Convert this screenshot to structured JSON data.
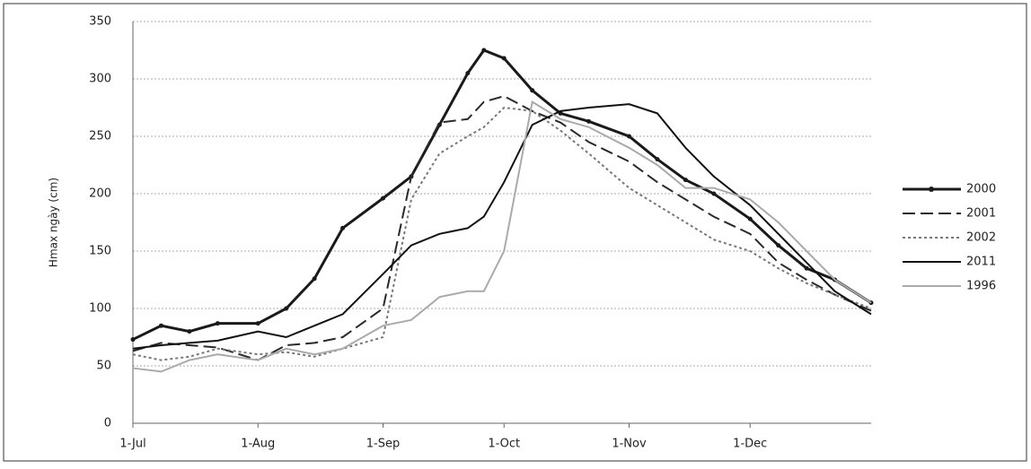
{
  "chart_data": {
    "type": "line",
    "y_label": "Hmax ngày (cm)",
    "x": [
      "1-Jul",
      "8-Jul",
      "15-Jul",
      "22-Jul",
      "1-Aug",
      "8-Aug",
      "15-Aug",
      "22-Aug",
      "1-Sep",
      "8-Sep",
      "15-Sep",
      "22-Sep",
      "26-Sep",
      "1-Oct",
      "8-Oct",
      "15-Oct",
      "22-Oct",
      "1-Nov",
      "8-Nov",
      "15-Nov",
      "22-Nov",
      "1-Dec",
      "8-Dec",
      "15-Dec",
      "22-Dec",
      "31-Dec"
    ],
    "series": [
      {
        "name": "2000",
        "color": "#1a1a1a",
        "style": "solid",
        "markers": true,
        "values": [
          73,
          85,
          80,
          87,
          87,
          100,
          126,
          170,
          196,
          215,
          260,
          305,
          325,
          318,
          290,
          270,
          263,
          250,
          230,
          212,
          200,
          178,
          155,
          135,
          125,
          105
        ]
      },
      {
        "name": "2001",
        "color": "#2a2a2a",
        "style": "dashed",
        "markers": false,
        "values": [
          63,
          70,
          68,
          66,
          55,
          68,
          70,
          75,
          100,
          215,
          262,
          265,
          280,
          285,
          272,
          262,
          245,
          228,
          210,
          195,
          180,
          165,
          140,
          125,
          112,
          98
        ]
      },
      {
        "name": "2002",
        "color": "#777777",
        "style": "dotted",
        "markers": false,
        "values": [
          60,
          55,
          58,
          65,
          60,
          62,
          58,
          65,
          75,
          195,
          235,
          250,
          258,
          275,
          272,
          255,
          235,
          205,
          190,
          175,
          160,
          150,
          135,
          122,
          112,
          100
        ]
      },
      {
        "name": "2011",
        "color": "#111111",
        "style": "solid",
        "markers": false,
        "values": [
          65,
          68,
          70,
          72,
          80,
          75,
          85,
          95,
          130,
          155,
          165,
          170,
          180,
          210,
          260,
          272,
          275,
          278,
          270,
          240,
          215,
          190,
          165,
          140,
          115,
          95
        ]
      },
      {
        "name": "1996",
        "color": "#aaaaaa",
        "style": "solid",
        "markers": false,
        "values": [
          48,
          45,
          55,
          60,
          55,
          65,
          60,
          65,
          85,
          90,
          110,
          115,
          115,
          150,
          280,
          265,
          258,
          240,
          225,
          205,
          205,
          195,
          175,
          150,
          125,
          105
        ]
      }
    ],
    "xlim": [
      "1-Jul",
      "31-Dec"
    ],
    "xticks": [
      "1-Jul",
      "1-Aug",
      "1-Sep",
      "1-Oct",
      "1-Nov",
      "1-Dec"
    ],
    "ylim": [
      0,
      350
    ],
    "yticks": [
      0,
      50,
      100,
      150,
      200,
      250,
      300,
      350
    ],
    "grid": true,
    "legend": "right"
  }
}
